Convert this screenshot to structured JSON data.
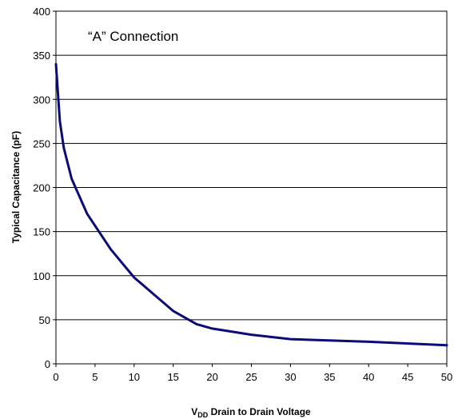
{
  "chart_data": {
    "type": "line",
    "annotation": "“A” Connection",
    "xlabel_main": "V",
    "xlabel_sub": "DD",
    "xlabel_rest": " Drain to Drain Voltage",
    "ylabel": "Typical Capacitance (pF)",
    "xlim": [
      0,
      50
    ],
    "ylim": [
      0,
      400
    ],
    "xticks": [
      0,
      5,
      10,
      15,
      20,
      25,
      30,
      35,
      40,
      45,
      50
    ],
    "yticks": [
      0,
      50,
      100,
      150,
      200,
      250,
      300,
      350,
      400
    ],
    "grid": "horizontal",
    "series": [
      {
        "color": "#0a0a78",
        "x": [
          0,
          0.5,
          1,
          2,
          4,
          7,
          10,
          15,
          18,
          20,
          25,
          30,
          40,
          50
        ],
        "y": [
          340,
          275,
          245,
          210,
          170,
          130,
          98,
          60,
          45,
          40,
          33,
          28,
          25,
          21
        ]
      }
    ]
  }
}
